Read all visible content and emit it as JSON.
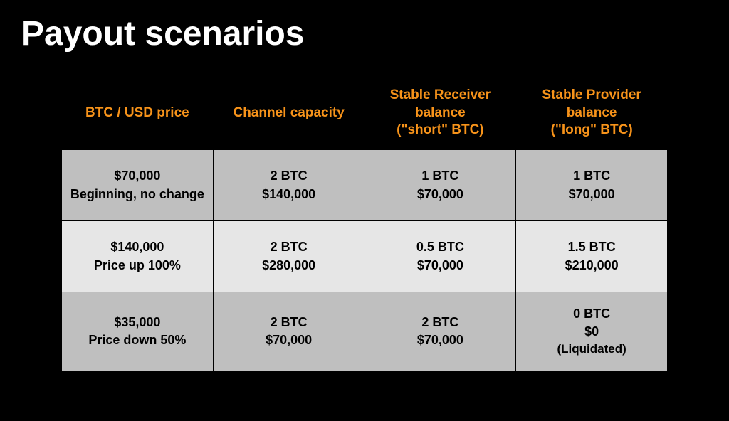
{
  "title": "Payout scenarios",
  "table": {
    "header_color": "#f7931a",
    "header_bg": "#000000",
    "row_alt_colors": [
      "#bfbfbf",
      "#e6e6e6"
    ],
    "cell_text_color": "#000000",
    "border_color": "#000000",
    "columns": [
      {
        "label": "BTC / USD price"
      },
      {
        "label": "Channel capacity"
      },
      {
        "label_line1": "Stable Receiver balance",
        "label_line2": "(\"short\" BTC)"
      },
      {
        "label_line1": "Stable Provider balance",
        "label_line2": "(\"long\" BTC)"
      }
    ],
    "rows": [
      {
        "shade": "dark",
        "price": {
          "value": "$70,000",
          "note": "Beginning, no change"
        },
        "capacity": {
          "btc": "2 BTC",
          "usd": "$140,000"
        },
        "receiver": {
          "btc": "1 BTC",
          "usd": "$70,000"
        },
        "provider": {
          "btc": "1 BTC",
          "usd": "$70,000"
        }
      },
      {
        "shade": "light",
        "price": {
          "value": "$140,000",
          "note": "Price up 100%"
        },
        "capacity": {
          "btc": "2 BTC",
          "usd": "$280,000"
        },
        "receiver": {
          "btc": "0.5 BTC",
          "usd": "$70,000"
        },
        "provider": {
          "btc": "1.5 BTC",
          "usd": "$210,000"
        }
      },
      {
        "shade": "dark",
        "price": {
          "value": "$35,000",
          "note": "Price down 50%"
        },
        "capacity": {
          "btc": "2 BTC",
          "usd": "$70,000"
        },
        "receiver": {
          "btc": "2 BTC",
          "usd": "$70,000"
        },
        "provider": {
          "btc": "0 BTC",
          "usd": "$0",
          "extra": "(Liquidated)"
        }
      }
    ]
  }
}
